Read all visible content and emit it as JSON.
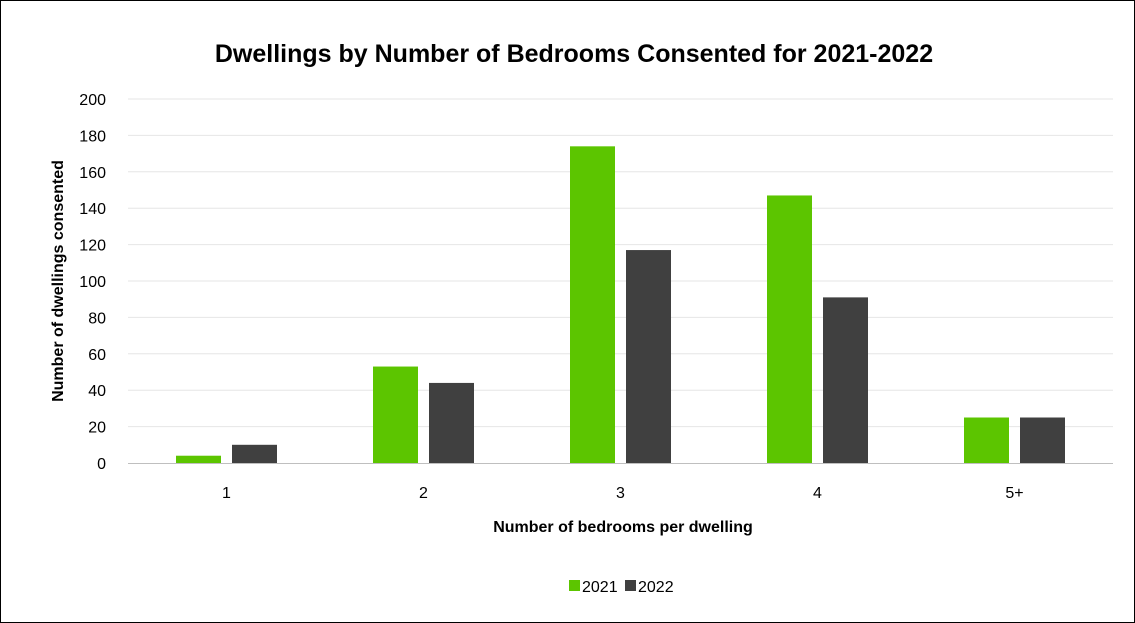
{
  "chart_data": {
    "type": "bar",
    "title": "Dwellings by Number of Bedrooms Consented for 2021-2022",
    "xlabel": "Number of bedrooms per dwelling",
    "ylabel": "Number of dwellings consented",
    "categories": [
      "1",
      "2",
      "3",
      "4",
      "5+"
    ],
    "series": [
      {
        "name": "2021",
        "color": "#5cc500",
        "values": [
          4,
          53,
          174,
          147,
          25
        ]
      },
      {
        "name": "2022",
        "color": "#404040",
        "values": [
          10,
          44,
          117,
          91,
          25
        ]
      }
    ],
    "ylim": [
      0,
      200
    ],
    "yticks": [
      "0",
      "20",
      "40",
      "60",
      "80",
      "100",
      "120",
      "140",
      "160",
      "180",
      "200"
    ],
    "grid": true,
    "gridColor": "#e6e6e6",
    "axisColor": "#bfbfbf",
    "legend_position": "bottom"
  }
}
